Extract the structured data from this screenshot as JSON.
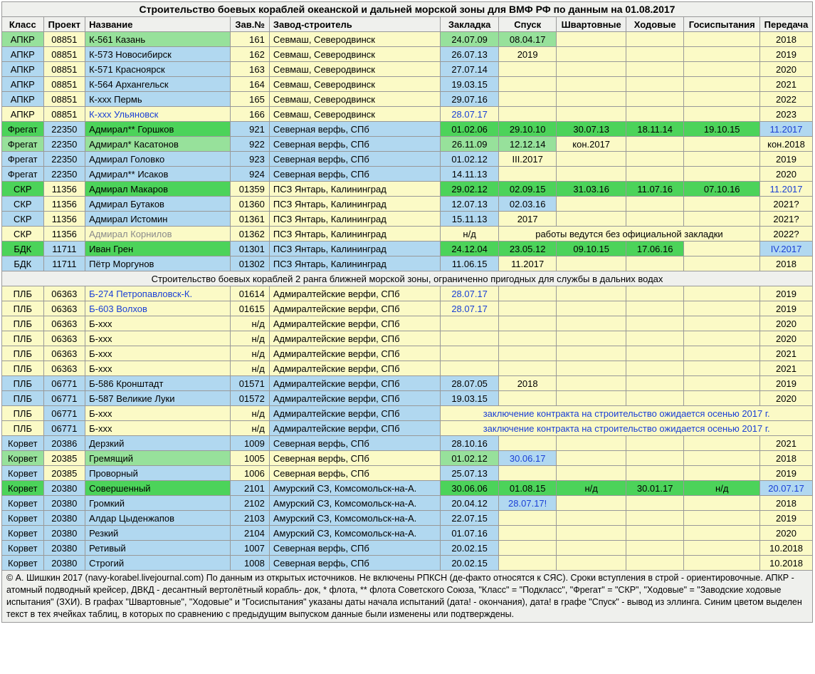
{
  "title": "Строительство боевых кораблей океанской и дальней морской зоны для ВМФ РФ по данным на 01.08.2017",
  "headers": [
    "Класс",
    "Проект",
    "Название",
    "Зав.№",
    "Завод-строитель",
    "Закладка",
    "Спуск",
    "Швартовные",
    "Ходовые",
    "Госиспытания",
    "Передача"
  ],
  "subsection": "Строительство боевых кораблей 2 ранга ближней морской зоны, ограниченно пригодных для службы в дальних водах",
  "note_kornilov": "работы ведутся без официальной закладки",
  "note_contract": "заключение контракта на строительство ожидается осенью 2017 г.",
  "rows1": [
    {
      "klass": "АПКР",
      "klassBg": "g",
      "proj": "08851",
      "projBg": "y",
      "name": "К-561 Казань",
      "nameBg": "g",
      "zav": "161",
      "zavBg": "y",
      "zavod": "Севмаш, Северодвинск",
      "zavodBg": "y",
      "c6": "24.07.09",
      "c6Bg": "g",
      "c7": "08.04.17",
      "c7Bg": "g",
      "c8": "",
      "c8Bg": "y",
      "c9": "",
      "c9Bg": "y",
      "c10": "",
      "c10Bg": "y",
      "c11": "2018",
      "c11Bg": "y"
    },
    {
      "klass": "АПКР",
      "klassBg": "b",
      "proj": "08851",
      "projBg": "y",
      "name": "К-573 Новосибирск",
      "nameBg": "b",
      "zav": "162",
      "zavBg": "y",
      "zavod": "Севмаш, Северодвинск",
      "zavodBg": "y",
      "c6": "26.07.13",
      "c6Bg": "b",
      "c7": "2019",
      "c7Bg": "y",
      "c8": "",
      "c8Bg": "y",
      "c9": "",
      "c9Bg": "y",
      "c10": "",
      "c10Bg": "y",
      "c11": "2019",
      "c11Bg": "y"
    },
    {
      "klass": "АПКР",
      "klassBg": "b",
      "proj": "08851",
      "projBg": "y",
      "name": "К-571 Красноярск",
      "nameBg": "b",
      "zav": "163",
      "zavBg": "y",
      "zavod": "Севмаш, Северодвинск",
      "zavodBg": "y",
      "c6": "27.07.14",
      "c6Bg": "b",
      "c7": "",
      "c7Bg": "y",
      "c8": "",
      "c8Bg": "y",
      "c9": "",
      "c9Bg": "y",
      "c10": "",
      "c10Bg": "y",
      "c11": "2020",
      "c11Bg": "y"
    },
    {
      "klass": "АПКР",
      "klassBg": "b",
      "proj": "08851",
      "projBg": "y",
      "name": "К-564 Архангельск",
      "nameBg": "b",
      "zav": "164",
      "zavBg": "y",
      "zavod": "Севмаш, Северодвинск",
      "zavodBg": "y",
      "c6": "19.03.15",
      "c6Bg": "b",
      "c7": "",
      "c7Bg": "y",
      "c8": "",
      "c8Bg": "y",
      "c9": "",
      "c9Bg": "y",
      "c10": "",
      "c10Bg": "y",
      "c11": "2021",
      "c11Bg": "y"
    },
    {
      "klass": "АПКР",
      "klassBg": "b",
      "proj": "08851",
      "projBg": "y",
      "name": "К-ххх Пермь",
      "nameBg": "b",
      "zav": "165",
      "zavBg": "y",
      "zavod": "Севмаш, Северодвинск",
      "zavodBg": "y",
      "c6": "29.07.16",
      "c6Bg": "b",
      "c7": "",
      "c7Bg": "y",
      "c8": "",
      "c8Bg": "y",
      "c9": "",
      "c9Bg": "y",
      "c10": "",
      "c10Bg": "y",
      "c11": "2022",
      "c11Bg": "y"
    },
    {
      "klass": "АПКР",
      "klassBg": "y",
      "proj": "08851",
      "projBg": "y",
      "name": "К-ххх Ульяновск",
      "nameBg": "y",
      "nameTxt": "blue",
      "zav": "166",
      "zavBg": "y",
      "zavod": "Севмаш, Северодвинск",
      "zavodBg": "y",
      "c6": "28.07.17",
      "c6Bg": "y",
      "c6Txt": "blue",
      "c7": "",
      "c7Bg": "y",
      "c8": "",
      "c8Bg": "y",
      "c9": "",
      "c9Bg": "y",
      "c10": "",
      "c10Bg": "y",
      "c11": "2023",
      "c11Bg": "y"
    },
    {
      "klass": "Фрегат",
      "klassBg": "gd",
      "proj": "22350",
      "projBg": "b",
      "name": "Адмирал** Горшков",
      "nameBg": "gd",
      "zav": "921",
      "zavBg": "b",
      "zavod": "Северная верфь, СПб",
      "zavodBg": "b",
      "c6": "01.02.06",
      "c6Bg": "gd",
      "c7": "29.10.10",
      "c7Bg": "gd",
      "c8": "30.07.13",
      "c8Bg": "gd",
      "c9": "18.11.14",
      "c9Bg": "gd",
      "c10": "19.10.15",
      "c10Bg": "gd",
      "c11": "11.2017",
      "c11Bg": "b",
      "c11Txt": "blue"
    },
    {
      "klass": "Фрегат",
      "klassBg": "g",
      "proj": "22350",
      "projBg": "b",
      "name": "Адмирал* Касатонов",
      "nameBg": "g",
      "zav": "922",
      "zavBg": "b",
      "zavod": "Северная верфь, СПб",
      "zavodBg": "b",
      "c6": "26.11.09",
      "c6Bg": "g",
      "c7": "12.12.14",
      "c7Bg": "g",
      "c8": "кон.2017",
      "c8Bg": "y",
      "c9": "",
      "c9Bg": "y",
      "c10": "",
      "c10Bg": "y",
      "c11": "кон.2018",
      "c11Bg": "y"
    },
    {
      "klass": "Фрегат",
      "klassBg": "b",
      "proj": "22350",
      "projBg": "b",
      "name": "Адмирал Головко",
      "nameBg": "b",
      "zav": "923",
      "zavBg": "b",
      "zavod": "Северная верфь, СПб",
      "zavodBg": "b",
      "c6": "01.02.12",
      "c6Bg": "b",
      "c7": "III.2017",
      "c7Bg": "y",
      "c8": "",
      "c8Bg": "y",
      "c9": "",
      "c9Bg": "y",
      "c10": "",
      "c10Bg": "y",
      "c11": "2019",
      "c11Bg": "y"
    },
    {
      "klass": "Фрегат",
      "klassBg": "b",
      "proj": "22350",
      "projBg": "b",
      "name": "Адмирал** Исаков",
      "nameBg": "b",
      "zav": "924",
      "zavBg": "b",
      "zavod": "Северная верфь, СПб",
      "zavodBg": "b",
      "c6": "14.11.13",
      "c6Bg": "b",
      "c7": "",
      "c7Bg": "y",
      "c8": "",
      "c8Bg": "y",
      "c9": "",
      "c9Bg": "y",
      "c10": "",
      "c10Bg": "y",
      "c11": "2020",
      "c11Bg": "y"
    },
    {
      "klass": "СКР",
      "klassBg": "gd",
      "proj": "11356",
      "projBg": "y",
      "name": "Адмирал Макаров",
      "nameBg": "gd",
      "zav": "01359",
      "zavBg": "y",
      "zavod": "ПСЗ Янтарь, Калининград",
      "zavodBg": "y",
      "c6": "29.02.12",
      "c6Bg": "gd",
      "c7": "02.09.15",
      "c7Bg": "gd",
      "c8": "31.03.16",
      "c8Bg": "gd",
      "c9": "11.07.16",
      "c9Bg": "gd",
      "c10": "07.10.16",
      "c10Bg": "gd",
      "c11": "11.2017",
      "c11Bg": "y",
      "c11Txt": "blue"
    },
    {
      "klass": "СКР",
      "klassBg": "b",
      "proj": "11356",
      "projBg": "y",
      "name": "Адмирал Бутаков",
      "nameBg": "b",
      "zav": "01360",
      "zavBg": "y",
      "zavod": "ПСЗ Янтарь, Калининград",
      "zavodBg": "y",
      "c6": "12.07.13",
      "c6Bg": "b",
      "c7": "02.03.16",
      "c7Bg": "b",
      "c8": "",
      "c8Bg": "y",
      "c9": "",
      "c9Bg": "y",
      "c10": "",
      "c10Bg": "y",
      "c11": "2021?",
      "c11Bg": "y"
    },
    {
      "klass": "СКР",
      "klassBg": "b",
      "proj": "11356",
      "projBg": "y",
      "name": "Адмирал Истомин",
      "nameBg": "b",
      "zav": "01361",
      "zavBg": "y",
      "zavod": "ПСЗ Янтарь, Калининград",
      "zavodBg": "y",
      "c6": "15.11.13",
      "c6Bg": "b",
      "c7": "2017",
      "c7Bg": "y",
      "c8": "",
      "c8Bg": "y",
      "c9": "",
      "c9Bg": "y",
      "c10": "",
      "c10Bg": "y",
      "c11": "2021?",
      "c11Bg": "y"
    },
    {
      "klass": "СКР",
      "klassBg": "y",
      "proj": "11356",
      "projBg": "y",
      "name": "Адмирал Корнилов",
      "nameBg": "y",
      "nameTxt": "gray",
      "zav": "01362",
      "zavBg": "y",
      "zavod": "ПСЗ Янтарь, Калининград",
      "zavodBg": "y",
      "c6": "н/д",
      "c6Bg": "y",
      "special": "kornilov",
      "c11": "2022?",
      "c11Bg": "y"
    },
    {
      "klass": "БДК",
      "klassBg": "gd",
      "proj": "11711",
      "projBg": "b",
      "name": "Иван Грен",
      "nameBg": "gd",
      "zav": "01301",
      "zavBg": "b",
      "zavod": "ПСЗ Янтарь, Калининград",
      "zavodBg": "b",
      "c6": "24.12.04",
      "c6Bg": "gd",
      "c7": "23.05.12",
      "c7Bg": "gd",
      "c8": "09.10.15",
      "c8Bg": "gd",
      "c9": "17.06.16",
      "c9Bg": "gd",
      "c10": "",
      "c10Bg": "y",
      "c11": "IV.2017",
      "c11Bg": "b",
      "c11Txt": "blue"
    },
    {
      "klass": "БДК",
      "klassBg": "b",
      "proj": "11711",
      "projBg": "b",
      "name": "Пётр Моргунов",
      "nameBg": "b",
      "zav": "01302",
      "zavBg": "b",
      "zavod": "ПСЗ Янтарь, Калининград",
      "zavodBg": "b",
      "c6": "11.06.15",
      "c6Bg": "b",
      "c7": "11.2017",
      "c7Bg": "y",
      "c8": "",
      "c8Bg": "y",
      "c9": "",
      "c9Bg": "y",
      "c10": "",
      "c10Bg": "y",
      "c11": "2018",
      "c11Bg": "y"
    }
  ],
  "rows2": [
    {
      "klass": "ПЛБ",
      "klassBg": "y",
      "proj": "06363",
      "projBg": "y",
      "name": "Б-274 Петропавловск-К.",
      "nameBg": "y",
      "nameTxt": "blue",
      "zav": "01614",
      "zavBg": "y",
      "zavod": "Адмиралтейские верфи, СПб",
      "zavodBg": "y",
      "c6": "28.07.17",
      "c6Bg": "y",
      "c6Txt": "blue",
      "c7": "",
      "c7Bg": "y",
      "c8": "",
      "c8Bg": "y",
      "c9": "",
      "c9Bg": "y",
      "c10": "",
      "c10Bg": "y",
      "c11": "2019",
      "c11Bg": "y"
    },
    {
      "klass": "ПЛБ",
      "klassBg": "y",
      "proj": "06363",
      "projBg": "y",
      "name": "Б-603 Волхов",
      "nameBg": "y",
      "nameTxt": "blue",
      "zav": "01615",
      "zavBg": "y",
      "zavod": "Адмиралтейские верфи, СПб",
      "zavodBg": "y",
      "c6": "28.07.17",
      "c6Bg": "y",
      "c6Txt": "blue",
      "c7": "",
      "c7Bg": "y",
      "c8": "",
      "c8Bg": "y",
      "c9": "",
      "c9Bg": "y",
      "c10": "",
      "c10Bg": "y",
      "c11": "2019",
      "c11Bg": "y"
    },
    {
      "klass": "ПЛБ",
      "klassBg": "y",
      "proj": "06363",
      "projBg": "y",
      "name": "Б-ххх",
      "nameBg": "y",
      "zav": "н/д",
      "zavBg": "y",
      "zavod": "Адмиралтейские верфи, СПб",
      "zavodBg": "y",
      "c6": "",
      "c6Bg": "y",
      "c7": "",
      "c7Bg": "y",
      "c8": "",
      "c8Bg": "y",
      "c9": "",
      "c9Bg": "y",
      "c10": "",
      "c10Bg": "y",
      "c11": "2020",
      "c11Bg": "y"
    },
    {
      "klass": "ПЛБ",
      "klassBg": "y",
      "proj": "06363",
      "projBg": "y",
      "name": "Б-ххх",
      "nameBg": "y",
      "zav": "н/д",
      "zavBg": "y",
      "zavod": "Адмиралтейские верфи, СПб",
      "zavodBg": "y",
      "c6": "",
      "c6Bg": "y",
      "c7": "",
      "c7Bg": "y",
      "c8": "",
      "c8Bg": "y",
      "c9": "",
      "c9Bg": "y",
      "c10": "",
      "c10Bg": "y",
      "c11": "2020",
      "c11Bg": "y"
    },
    {
      "klass": "ПЛБ",
      "klassBg": "y",
      "proj": "06363",
      "projBg": "y",
      "name": "Б-ххх",
      "nameBg": "y",
      "zav": "н/д",
      "zavBg": "y",
      "zavod": "Адмиралтейские верфи, СПб",
      "zavodBg": "y",
      "c6": "",
      "c6Bg": "y",
      "c7": "",
      "c7Bg": "y",
      "c8": "",
      "c8Bg": "y",
      "c9": "",
      "c9Bg": "y",
      "c10": "",
      "c10Bg": "y",
      "c11": "2021",
      "c11Bg": "y"
    },
    {
      "klass": "ПЛБ",
      "klassBg": "y",
      "proj": "06363",
      "projBg": "y",
      "name": "Б-ххх",
      "nameBg": "y",
      "zav": "н/д",
      "zavBg": "y",
      "zavod": "Адмиралтейские верфи, СПб",
      "zavodBg": "y",
      "c6": "",
      "c6Bg": "y",
      "c7": "",
      "c7Bg": "y",
      "c8": "",
      "c8Bg": "y",
      "c9": "",
      "c9Bg": "y",
      "c10": "",
      "c10Bg": "y",
      "c11": "2021",
      "c11Bg": "y"
    },
    {
      "klass": "ПЛБ",
      "klassBg": "b",
      "proj": "06771",
      "projBg": "b",
      "name": "Б-586 Кронштадт",
      "nameBg": "b",
      "zav": "01571",
      "zavBg": "b",
      "zavod": "Адмиралтейские верфи, СПб",
      "zavodBg": "b",
      "c6": "28.07.05",
      "c6Bg": "b",
      "c7": "2018",
      "c7Bg": "y",
      "c8": "",
      "c8Bg": "y",
      "c9": "",
      "c9Bg": "y",
      "c10": "",
      "c10Bg": "y",
      "c11": "2019",
      "c11Bg": "y"
    },
    {
      "klass": "ПЛБ",
      "klassBg": "b",
      "proj": "06771",
      "projBg": "b",
      "name": "Б-587 Великие Луки",
      "nameBg": "b",
      "zav": "01572",
      "zavBg": "b",
      "zavod": "Адмиралтейские верфи, СПб",
      "zavodBg": "b",
      "c6": "19.03.15",
      "c6Bg": "b",
      "c7": "",
      "c7Bg": "y",
      "c8": "",
      "c8Bg": "y",
      "c9": "",
      "c9Bg": "y",
      "c10": "",
      "c10Bg": "y",
      "c11": "2020",
      "c11Bg": "y"
    },
    {
      "klass": "ПЛБ",
      "klassBg": "y",
      "proj": "06771",
      "projBg": "b",
      "name": "Б-ххх",
      "nameBg": "y",
      "zav": "н/д",
      "zavBg": "y",
      "zavod": "Адмиралтейские верфи, СПб",
      "zavodBg": "b",
      "special": "contract"
    },
    {
      "klass": "ПЛБ",
      "klassBg": "y",
      "proj": "06771",
      "projBg": "b",
      "name": "Б-ххх",
      "nameBg": "y",
      "zav": "н/д",
      "zavBg": "y",
      "zavod": "Адмиралтейские верфи, СПб",
      "zavodBg": "b",
      "special": "contract"
    },
    {
      "klass": "Корвет",
      "klassBg": "b",
      "proj": "20386",
      "projBg": "b",
      "name": "Дерзкий",
      "nameBg": "b",
      "zav": "1009",
      "zavBg": "b",
      "zavod": "Северная верфь, СПб",
      "zavodBg": "b",
      "c6": "28.10.16",
      "c6Bg": "b",
      "c7": "",
      "c7Bg": "y",
      "c8": "",
      "c8Bg": "y",
      "c9": "",
      "c9Bg": "y",
      "c10": "",
      "c10Bg": "y",
      "c11": "2021",
      "c11Bg": "y"
    },
    {
      "klass": "Корвет",
      "klassBg": "g",
      "proj": "20385",
      "projBg": "y",
      "name": "Гремящий",
      "nameBg": "g",
      "zav": "1005",
      "zavBg": "y",
      "zavod": "Северная верфь, СПб",
      "zavodBg": "y",
      "c6": "01.02.12",
      "c6Bg": "g",
      "c7": "30.06.17",
      "c7Bg": "b",
      "c7Txt": "blue",
      "c8": "",
      "c8Bg": "y",
      "c9": "",
      "c9Bg": "y",
      "c10": "",
      "c10Bg": "y",
      "c11": "2018",
      "c11Bg": "y"
    },
    {
      "klass": "Корвет",
      "klassBg": "b",
      "proj": "20385",
      "projBg": "y",
      "name": "Проворный",
      "nameBg": "b",
      "zav": "1006",
      "zavBg": "y",
      "zavod": "Северная верфь, СПб",
      "zavodBg": "y",
      "c6": "25.07.13",
      "c6Bg": "b",
      "c7": "",
      "c7Bg": "y",
      "c8": "",
      "c8Bg": "y",
      "c9": "",
      "c9Bg": "y",
      "c10": "",
      "c10Bg": "y",
      "c11": "2019",
      "c11Bg": "y"
    },
    {
      "klass": "Корвет",
      "klassBg": "gd",
      "proj": "20380",
      "projBg": "b",
      "name": "Совершенный",
      "nameBg": "gd",
      "zav": "2101",
      "zavBg": "b",
      "zavod": "Амурский СЗ, Комсомольск-на-А.",
      "zavodBg": "b",
      "c6": "30.06.06",
      "c6Bg": "gd",
      "c7": "01.08.15",
      "c7Bg": "gd",
      "c8": "н/д",
      "c8Bg": "gd",
      "c9": "30.01.17",
      "c9Bg": "gd",
      "c10": "н/д",
      "c10Bg": "gd",
      "c11": "20.07.17",
      "c11Bg": "b",
      "c11Txt": "blue"
    },
    {
      "klass": "Корвет",
      "klassBg": "b",
      "proj": "20380",
      "projBg": "b",
      "name": "Громкий",
      "nameBg": "b",
      "zav": "2102",
      "zavBg": "b",
      "zavod": "Амурский СЗ, Комсомольск-на-А.",
      "zavodBg": "b",
      "c6": "20.04.12",
      "c6Bg": "b",
      "c7": "28.07.17!",
      "c7Bg": "b",
      "c7Txt": "blue",
      "c8": "",
      "c8Bg": "y",
      "c9": "",
      "c9Bg": "y",
      "c10": "",
      "c10Bg": "y",
      "c11": "2018",
      "c11Bg": "y"
    },
    {
      "klass": "Корвет",
      "klassBg": "b",
      "proj": "20380",
      "projBg": "b",
      "name": "Алдар Цыденжапов",
      "nameBg": "b",
      "zav": "2103",
      "zavBg": "b",
      "zavod": "Амурский СЗ, Комсомольск-на-А.",
      "zavodBg": "b",
      "c6": "22.07.15",
      "c6Bg": "b",
      "c7": "",
      "c7Bg": "y",
      "c8": "",
      "c8Bg": "y",
      "c9": "",
      "c9Bg": "y",
      "c10": "",
      "c10Bg": "y",
      "c11": "2019",
      "c11Bg": "y"
    },
    {
      "klass": "Корвет",
      "klassBg": "b",
      "proj": "20380",
      "projBg": "b",
      "name": "Резкий",
      "nameBg": "b",
      "zav": "2104",
      "zavBg": "b",
      "zavod": "Амурский СЗ, Комсомольск-на-А.",
      "zavodBg": "b",
      "c6": "01.07.16",
      "c6Bg": "b",
      "c7": "",
      "c7Bg": "y",
      "c8": "",
      "c8Bg": "y",
      "c9": "",
      "c9Bg": "y",
      "c10": "",
      "c10Bg": "y",
      "c11": "2020",
      "c11Bg": "y"
    },
    {
      "klass": "Корвет",
      "klassBg": "b",
      "proj": "20380",
      "projBg": "b",
      "name": "Ретивый",
      "nameBg": "b",
      "zav": "1007",
      "zavBg": "b",
      "zavod": "Северная верфь, СПб",
      "zavodBg": "b",
      "c6": "20.02.15",
      "c6Bg": "b",
      "c7": "",
      "c7Bg": "y",
      "c8": "",
      "c8Bg": "y",
      "c9": "",
      "c9Bg": "y",
      "c10": "",
      "c10Bg": "y",
      "c11": "10.2018",
      "c11Bg": "y"
    },
    {
      "klass": "Корвет",
      "klassBg": "b",
      "proj": "20380",
      "projBg": "b",
      "name": "Строгий",
      "nameBg": "b",
      "zav": "1008",
      "zavBg": "b",
      "zavod": "Северная верфь, СПб",
      "zavodBg": "b",
      "c6": "20.02.15",
      "c6Bg": "b",
      "c7": "",
      "c7Bg": "y",
      "c8": "",
      "c8Bg": "y",
      "c9": "",
      "c9Bg": "y",
      "c10": "",
      "c10Bg": "y",
      "c11": "10.2018",
      "c11Bg": "y"
    }
  ],
  "footnote": "© А. Шишкин 2017 (navy-korabel.livejournal.com)    По данным из открытых источников. Не включены РПКСН (де-факто относятся к СЯС). Сроки вступления в строй - ориентировочные. АПКР - атомный подводный крейсер, ДВКД - десантный вертолётный корабль- док, * флота, ** флота Советского Союза, \"Класс\" = \"Подкласс\", \"Фрегат\" = \"СКР\", \"Ходовые\" = \"Заводские ходовые испытания\" (ЗХИ). В графах \"Швартовные\", \"Ходовые\" и \"Госиспытания\" указаны даты начала испытаний (дата! - окончания), дата! в графе \"Спуск\" - вывод из эллинга. Синим цветом выделен текст в тех ячейках таблиц, в которых по сравнению с предыдущим выпуском данные были изменены или подтверждены."
}
